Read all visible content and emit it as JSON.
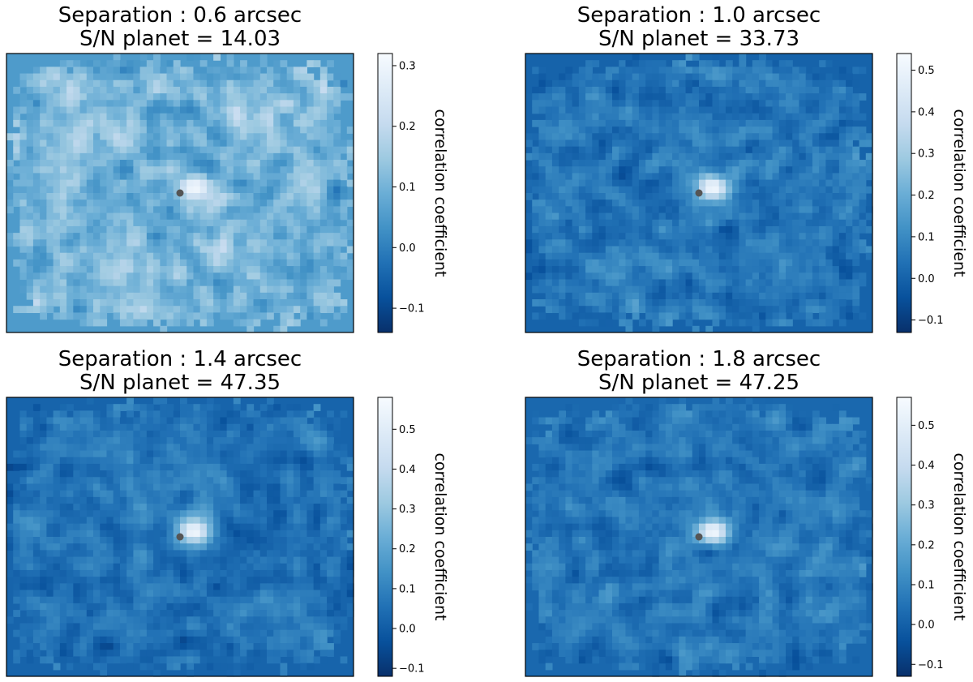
{
  "chart_data": [
    {
      "type": "heatmap",
      "title_line1": "Separation : 0.6 arcsec",
      "title_line2": "S/N planet = 14.03",
      "separation_arcsec": 0.6,
      "sn_planet": 14.03,
      "colorbar": {
        "label": "correlation coefficient",
        "vmin": -0.14,
        "vmax": 0.32,
        "ticks": [
          -0.1,
          0.0,
          0.1,
          0.2,
          0.3
        ],
        "tick_labels": [
          "−0.1",
          "0.0",
          "0.1",
          "0.2",
          "0.3"
        ]
      },
      "background_value": 0.05,
      "noise_mean": 0.1,
      "noise_spread": 0.16,
      "peak_value": 0.31,
      "seed": 11
    },
    {
      "type": "heatmap",
      "title_line1": "Separation : 1.0 arcsec",
      "title_line2": "S/N planet = 33.73",
      "separation_arcsec": 1.0,
      "sn_planet": 33.73,
      "colorbar": {
        "label": "correlation coefficient",
        "vmin": -0.13,
        "vmax": 0.54,
        "ticks": [
          -0.1,
          0.0,
          0.1,
          0.2,
          0.3,
          0.4,
          0.5
        ],
        "tick_labels": [
          "−0.1",
          "0.0",
          "0.1",
          "0.2",
          "0.3",
          "0.4",
          "0.5"
        ]
      },
      "background_value": 0.0,
      "noise_mean": 0.05,
      "noise_spread": 0.16,
      "peak_value": 0.53,
      "seed": 23
    },
    {
      "type": "heatmap",
      "title_line1": "Separation : 1.4 arcsec",
      "title_line2": "S/N planet = 47.35",
      "separation_arcsec": 1.4,
      "sn_planet": 47.35,
      "colorbar": {
        "label": "correlation coefficient",
        "vmin": -0.12,
        "vmax": 0.58,
        "ticks": [
          -0.1,
          0.0,
          0.1,
          0.2,
          0.3,
          0.4,
          0.5
        ],
        "tick_labels": [
          "−0.1",
          "0.0",
          "0.1",
          "0.2",
          "0.3",
          "0.4",
          "0.5"
        ]
      },
      "background_value": 0.02,
      "noise_mean": 0.06,
      "noise_spread": 0.16,
      "peak_value": 0.57,
      "seed": 37
    },
    {
      "type": "heatmap",
      "title_line1": "Separation : 1.8 arcsec",
      "title_line2": "S/N planet = 47.25",
      "separation_arcsec": 1.8,
      "sn_planet": 47.25,
      "colorbar": {
        "label": "correlation coefficient",
        "vmin": -0.13,
        "vmax": 0.57,
        "ticks": [
          -0.1,
          0.0,
          0.1,
          0.2,
          0.3,
          0.4,
          0.5
        ],
        "tick_labels": [
          "−0.1",
          "0.0",
          "0.1",
          "0.2",
          "0.3",
          "0.4",
          "0.5"
        ]
      },
      "background_value": 0.02,
      "noise_mean": 0.06,
      "noise_spread": 0.16,
      "peak_value": 0.56,
      "seed": 53
    }
  ],
  "colormap": [
    "#f7fbff",
    "#deebf7",
    "#c6dbef",
    "#9ecae1",
    "#6baed6",
    "#4292c6",
    "#2171b5",
    "#08519c",
    "#08306b"
  ],
  "marker_color": "#555555"
}
